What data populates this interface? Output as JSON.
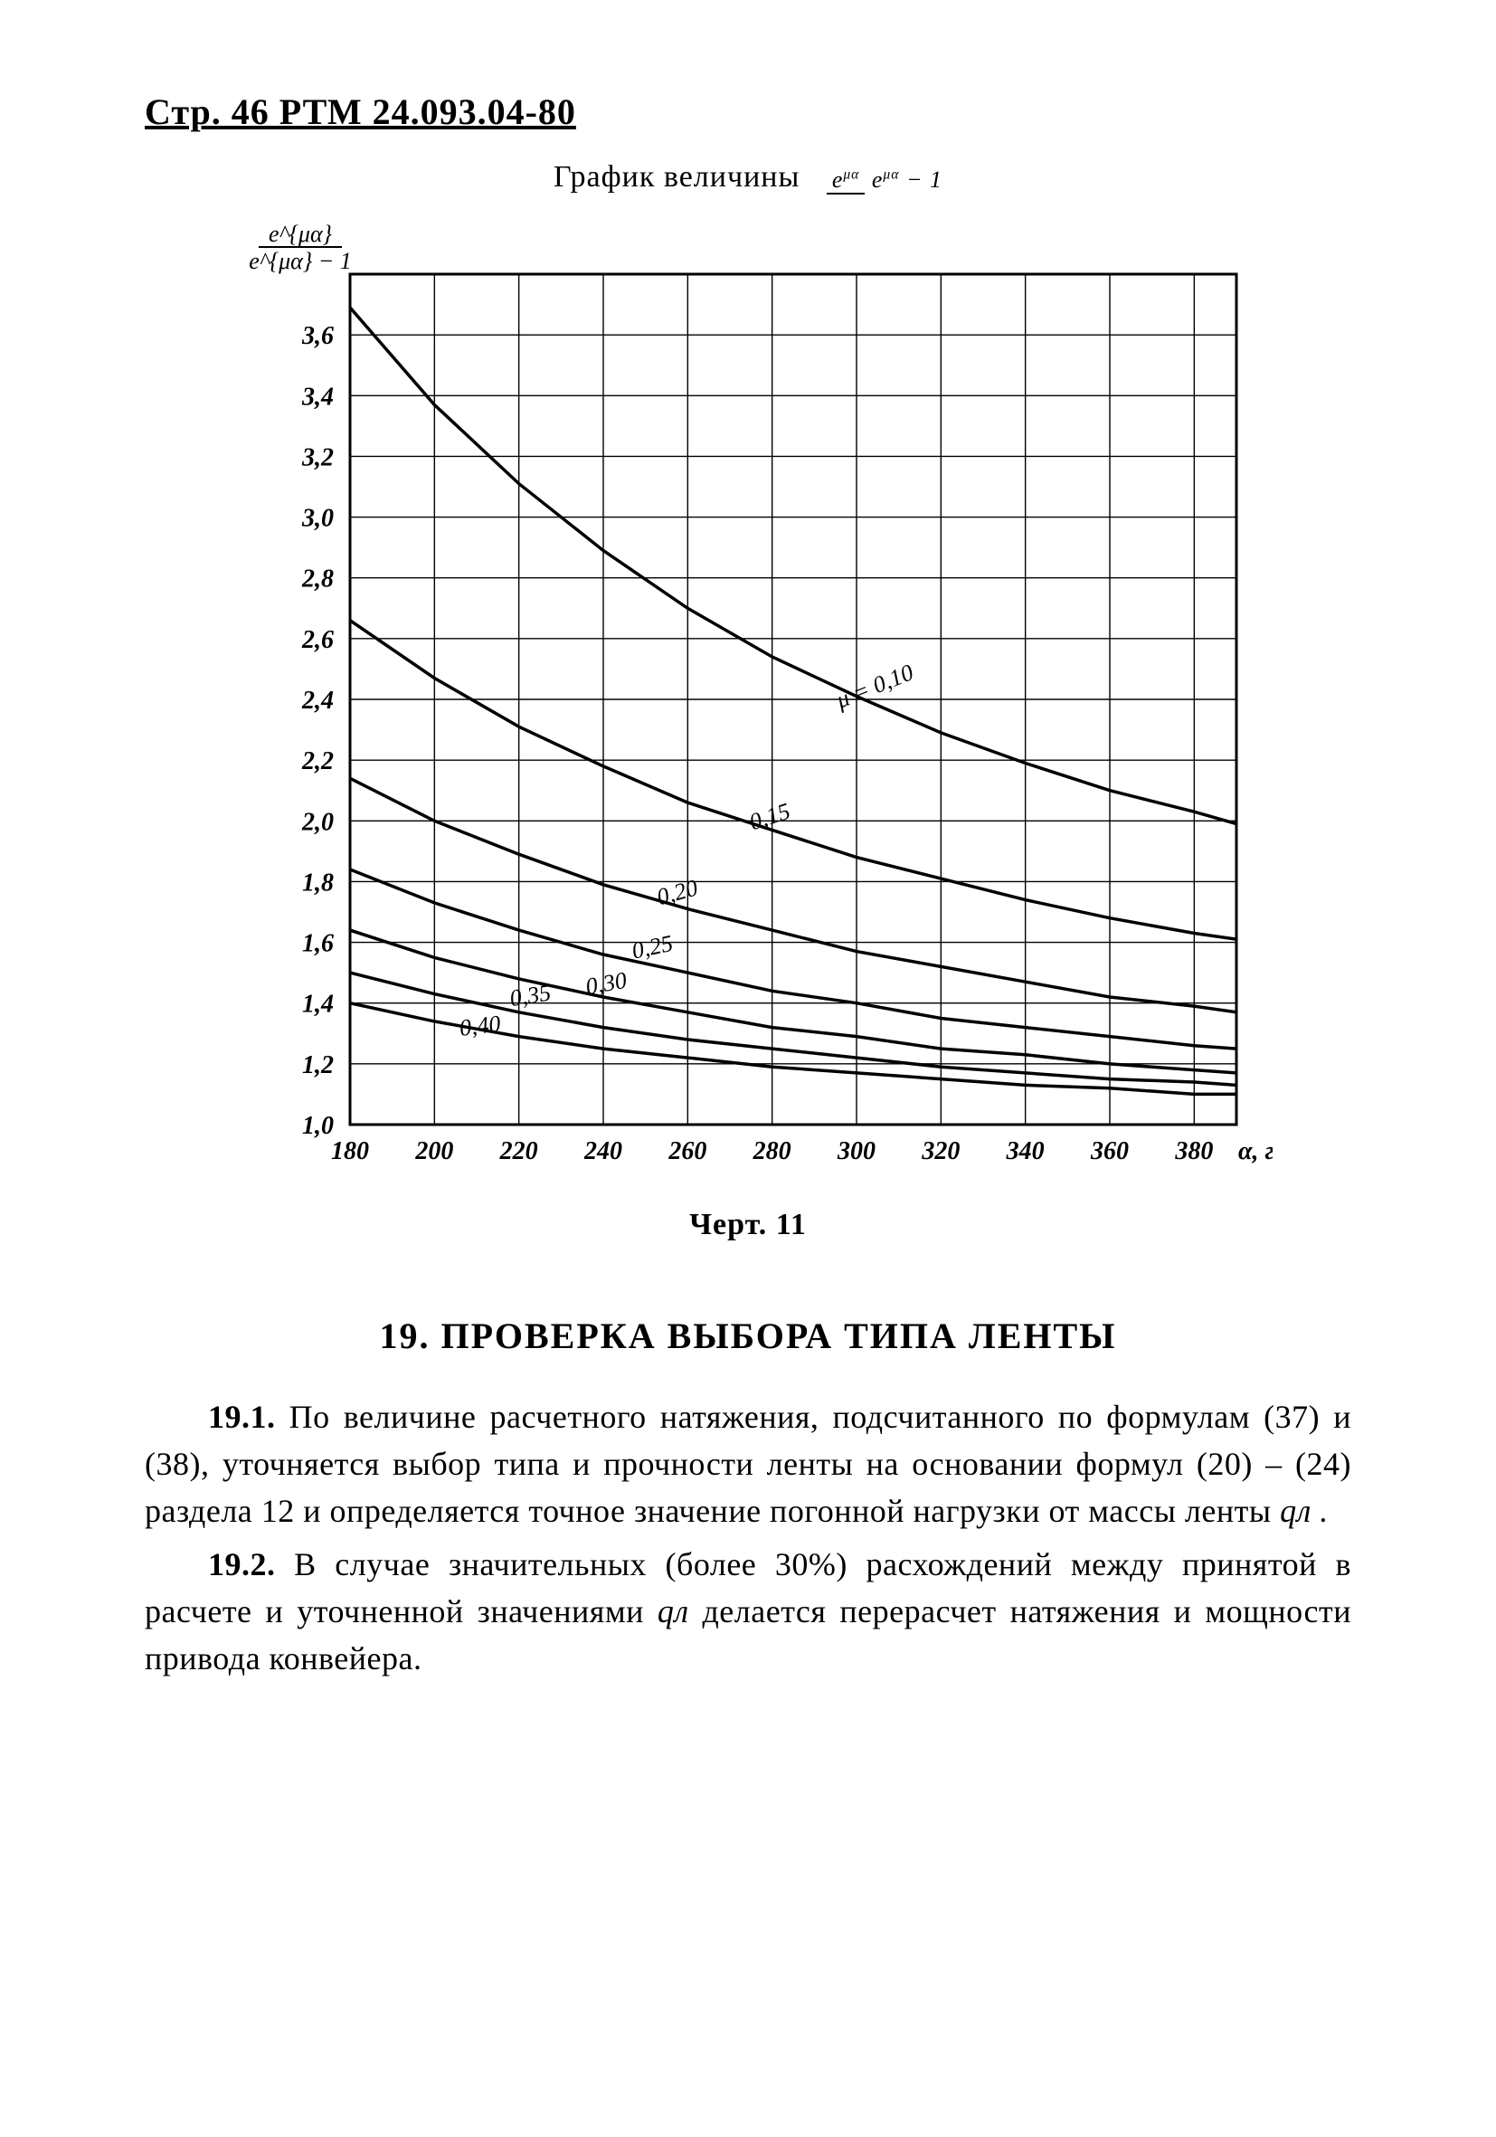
{
  "page_header": "Стр. 46 РТМ 24.093.04-80",
  "chart": {
    "type": "line",
    "title_prefix": "График величины",
    "formula_numerator": "e^{μα}",
    "formula_denominator": "e^{μα} − 1",
    "x_axis_label": "α, град",
    "y_axis_label_text": "e^{μα} / (e^{μα} − 1)",
    "caption": "Черт. 11",
    "xlim": [
      180,
      390
    ],
    "ylim": [
      1.0,
      3.8
    ],
    "x_ticks": [
      180,
      200,
      220,
      240,
      260,
      280,
      300,
      320,
      340,
      360,
      380
    ],
    "y_ticks": [
      1.0,
      1.2,
      1.4,
      1.6,
      1.8,
      2.0,
      2.2,
      2.4,
      2.6,
      2.8,
      3.0,
      3.2,
      3.4,
      3.6
    ],
    "x_tick_labels": [
      "180",
      "200",
      "220",
      "240",
      "260",
      "280",
      "300",
      "320",
      "340",
      "360",
      "380"
    ],
    "y_tick_labels": [
      "1,0",
      "1,2",
      "1,4",
      "1,6",
      "1,8",
      "2,0",
      "2,2",
      "2,4",
      "2,6",
      "2,8",
      "3,0",
      "3,2",
      "3,4",
      "3,6"
    ],
    "background_color": "#ffffff",
    "grid_color": "#000000",
    "grid_width": 1.4,
    "border_width": 3,
    "curve_color": "#000000",
    "curve_width": 3.5,
    "label_fontsize": 28,
    "curves": [
      {
        "mu": "0,10",
        "label": "μ = 0,10",
        "points": [
          [
            180,
            3.69
          ],
          [
            200,
            3.37
          ],
          [
            220,
            3.11
          ],
          [
            240,
            2.89
          ],
          [
            260,
            2.7
          ],
          [
            280,
            2.54
          ],
          [
            300,
            2.41
          ],
          [
            320,
            2.29
          ],
          [
            340,
            2.19
          ],
          [
            360,
            2.1
          ],
          [
            380,
            2.03
          ],
          [
            390,
            1.99
          ]
        ]
      },
      {
        "mu": "0,15",
        "label": "0,15",
        "points": [
          [
            180,
            2.66
          ],
          [
            200,
            2.47
          ],
          [
            220,
            2.31
          ],
          [
            240,
            2.18
          ],
          [
            260,
            2.06
          ],
          [
            280,
            1.97
          ],
          [
            300,
            1.88
          ],
          [
            320,
            1.81
          ],
          [
            340,
            1.74
          ],
          [
            360,
            1.68
          ],
          [
            380,
            1.63
          ],
          [
            390,
            1.61
          ]
        ]
      },
      {
        "mu": "0,20",
        "label": "0,20",
        "points": [
          [
            180,
            2.14
          ],
          [
            200,
            2.0
          ],
          [
            220,
            1.89
          ],
          [
            240,
            1.79
          ],
          [
            260,
            1.71
          ],
          [
            280,
            1.64
          ],
          [
            300,
            1.57
          ],
          [
            320,
            1.52
          ],
          [
            340,
            1.47
          ],
          [
            360,
            1.42
          ],
          [
            380,
            1.39
          ],
          [
            390,
            1.37
          ]
        ]
      },
      {
        "mu": "0,25",
        "label": "0,25",
        "points": [
          [
            180,
            1.84
          ],
          [
            200,
            1.73
          ],
          [
            220,
            1.64
          ],
          [
            240,
            1.56
          ],
          [
            260,
            1.5
          ],
          [
            280,
            1.44
          ],
          [
            300,
            1.4
          ],
          [
            320,
            1.35
          ],
          [
            340,
            1.32
          ],
          [
            360,
            1.29
          ],
          [
            380,
            1.26
          ],
          [
            390,
            1.25
          ]
        ]
      },
      {
        "mu": "0,30",
        "label": "0,30",
        "points": [
          [
            180,
            1.64
          ],
          [
            200,
            1.55
          ],
          [
            220,
            1.48
          ],
          [
            240,
            1.42
          ],
          [
            260,
            1.37
          ],
          [
            280,
            1.32
          ],
          [
            300,
            1.29
          ],
          [
            320,
            1.25
          ],
          [
            340,
            1.23
          ],
          [
            360,
            1.2
          ],
          [
            380,
            1.18
          ],
          [
            390,
            1.17
          ]
        ]
      },
      {
        "mu": "0,35",
        "label": "0,35",
        "points": [
          [
            180,
            1.5
          ],
          [
            200,
            1.43
          ],
          [
            220,
            1.37
          ],
          [
            240,
            1.32
          ],
          [
            260,
            1.28
          ],
          [
            280,
            1.25
          ],
          [
            300,
            1.22
          ],
          [
            320,
            1.19
          ],
          [
            340,
            1.17
          ],
          [
            360,
            1.15
          ],
          [
            380,
            1.14
          ],
          [
            390,
            1.13
          ]
        ]
      },
      {
        "mu": "0,40",
        "label": "0,40",
        "points": [
          [
            180,
            1.4
          ],
          [
            200,
            1.34
          ],
          [
            220,
            1.29
          ],
          [
            240,
            1.25
          ],
          [
            260,
            1.22
          ],
          [
            280,
            1.19
          ],
          [
            300,
            1.17
          ],
          [
            320,
            1.15
          ],
          [
            340,
            1.13
          ],
          [
            360,
            1.12
          ],
          [
            380,
            1.1
          ],
          [
            390,
            1.1
          ]
        ]
      }
    ],
    "curve_label_positions": [
      {
        "idx": 0,
        "x": 305,
        "y": 2.42,
        "rot": -22
      },
      {
        "idx": 1,
        "x": 280,
        "y": 1.99,
        "rot": -18
      },
      {
        "idx": 2,
        "x": 258,
        "y": 1.74,
        "rot": -15
      },
      {
        "idx": 3,
        "x": 252,
        "y": 1.56,
        "rot": -12
      },
      {
        "idx": 4,
        "x": 241,
        "y": 1.44,
        "rot": -10
      },
      {
        "idx": 5,
        "x": 223,
        "y": 1.4,
        "rot": -9
      },
      {
        "idx": 6,
        "x": 211,
        "y": 1.3,
        "rot": -7
      }
    ]
  },
  "section_heading": "19. ПРОВЕРКА ВЫБОРА ТИПА ЛЕНТЫ",
  "paragraphs": {
    "p1_num": "19.1.",
    "p1_text": " По величине расчетного натяжения, подсчитанного по формулам (37) и (38), уточняется выбор типа и прочности ленты на основании формул (20) – (24) раздела 12 и определяется точное значение погонной нагрузки от массы ленты ",
    "p1_sym": "qл .",
    "p2_num": "19.2.",
    "p2_text": " В случае значительных (более 30%) расхождений между принятой в расчете и уточненной значениями ",
    "p2_sym": "qл",
    "p2_tail": " делается перерасчет натяжения и мощности привода конвейера."
  }
}
